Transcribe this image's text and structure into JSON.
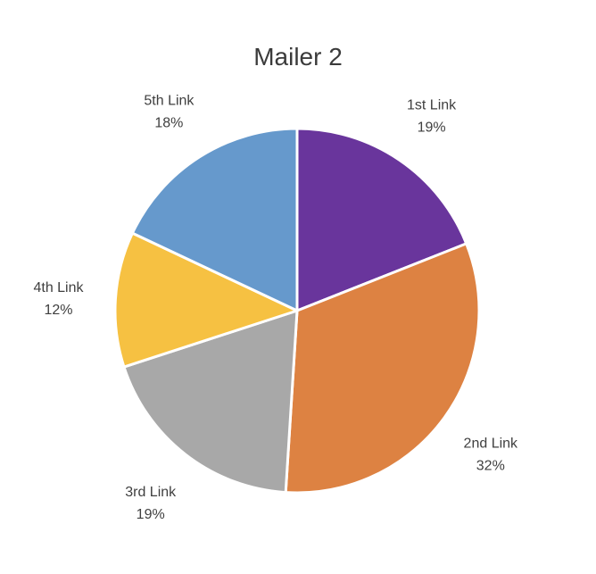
{
  "chart_data": {
    "type": "pie",
    "title": "Mailer 2",
    "categories": [
      "1st Link",
      "2nd Link",
      "3rd Link",
      "4th Link",
      "5th Link"
    ],
    "values": [
      19,
      32,
      19,
      12,
      18
    ],
    "value_labels": [
      "19%",
      "32%",
      "19%",
      "12%",
      "18%"
    ],
    "colors": [
      "#69359c",
      "#dd8242",
      "#a8a8a8",
      "#f6c142",
      "#6699cc"
    ],
    "legend": "none",
    "start_angle": "12 o'clock",
    "direction": "clockwise"
  }
}
